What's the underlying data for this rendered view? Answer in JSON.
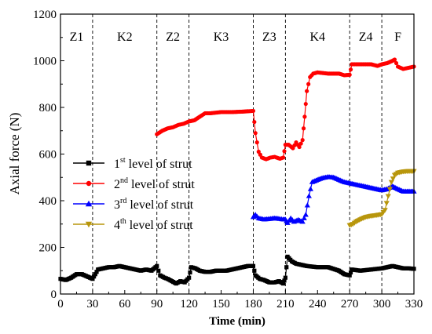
{
  "chart_data": {
    "type": "line",
    "xlabel": "Time (min)",
    "ylabel": "Axial force (N)",
    "xlim": [
      0,
      330
    ],
    "ylim": [
      0,
      1200
    ],
    "xticks": [
      "0",
      "30",
      "60",
      "90",
      "120",
      "150",
      "180",
      "210",
      "240",
      "270",
      "300",
      "330"
    ],
    "yticks": [
      "0",
      "200",
      "400",
      "600",
      "800",
      "1000",
      "1200"
    ],
    "phase_boundaries": [
      30,
      90,
      120,
      180,
      210,
      270,
      300
    ],
    "phases": [
      {
        "label": "Z1",
        "x": 15
      },
      {
        "label": "K2",
        "x": 60
      },
      {
        "label": "Z2",
        "x": 105
      },
      {
        "label": "K3",
        "x": 150
      },
      {
        "label": "Z3",
        "x": 195
      },
      {
        "label": "K4",
        "x": 240
      },
      {
        "label": "Z4",
        "x": 285
      },
      {
        "label": "F",
        "x": 315
      }
    ],
    "series": [
      {
        "name_num": "1",
        "name_sup": "st",
        "name_rest": " level of strut",
        "color": "#000000",
        "marker": "square",
        "points": [
          [
            0,
            65
          ],
          [
            5,
            60
          ],
          [
            10,
            70
          ],
          [
            15,
            85
          ],
          [
            20,
            85
          ],
          [
            25,
            75
          ],
          [
            30,
            65
          ],
          [
            35,
            105
          ],
          [
            40,
            110
          ],
          [
            45,
            115
          ],
          [
            50,
            115
          ],
          [
            55,
            120
          ],
          [
            60,
            115
          ],
          [
            65,
            110
          ],
          [
            70,
            105
          ],
          [
            75,
            100
          ],
          [
            80,
            105
          ],
          [
            85,
            100
          ],
          [
            90,
            120
          ],
          [
            93,
            80
          ],
          [
            97,
            70
          ],
          [
            100,
            65
          ],
          [
            104,
            55
          ],
          [
            108,
            45
          ],
          [
            112,
            55
          ],
          [
            116,
            50
          ],
          [
            120,
            70
          ],
          [
            122,
            115
          ],
          [
            126,
            110
          ],
          [
            130,
            100
          ],
          [
            135,
            95
          ],
          [
            140,
            95
          ],
          [
            145,
            100
          ],
          [
            150,
            100
          ],
          [
            155,
            100
          ],
          [
            160,
            105
          ],
          [
            165,
            110
          ],
          [
            170,
            115
          ],
          [
            175,
            120
          ],
          [
            180,
            120
          ],
          [
            182,
            80
          ],
          [
            186,
            65
          ],
          [
            190,
            60
          ],
          [
            195,
            50
          ],
          [
            200,
            50
          ],
          [
            204,
            55
          ],
          [
            208,
            45
          ],
          [
            210,
            70
          ],
          [
            212,
            160
          ],
          [
            216,
            140
          ],
          [
            220,
            130
          ],
          [
            225,
            125
          ],
          [
            230,
            120
          ],
          [
            240,
            115
          ],
          [
            250,
            115
          ],
          [
            260,
            100
          ],
          [
            265,
            85
          ],
          [
            270,
            80
          ],
          [
            272,
            105
          ],
          [
            280,
            100
          ],
          [
            290,
            105
          ],
          [
            300,
            110
          ],
          [
            305,
            115
          ],
          [
            310,
            120
          ],
          [
            315,
            115
          ],
          [
            320,
            110
          ],
          [
            325,
            110
          ],
          [
            330,
            108
          ]
        ]
      },
      {
        "name_num": "2",
        "name_sup": "nd",
        "name_rest": " level of strut",
        "color": "#ff0000",
        "marker": "circle",
        "points": [
          [
            90,
            685
          ],
          [
            95,
            700
          ],
          [
            100,
            710
          ],
          [
            105,
            715
          ],
          [
            110,
            725
          ],
          [
            115,
            730
          ],
          [
            120,
            740
          ],
          [
            125,
            745
          ],
          [
            130,
            760
          ],
          [
            135,
            775
          ],
          [
            140,
            775
          ],
          [
            150,
            780
          ],
          [
            160,
            780
          ],
          [
            170,
            782
          ],
          [
            180,
            785
          ],
          [
            182,
            690
          ],
          [
            185,
            610
          ],
          [
            188,
            585
          ],
          [
            192,
            578
          ],
          [
            196,
            585
          ],
          [
            200,
            588
          ],
          [
            205,
            580
          ],
          [
            208,
            585
          ],
          [
            210,
            640
          ],
          [
            213,
            640
          ],
          [
            217,
            625
          ],
          [
            220,
            650
          ],
          [
            223,
            630
          ],
          [
            226,
            660
          ],
          [
            228,
            760
          ],
          [
            230,
            870
          ],
          [
            233,
            930
          ],
          [
            236,
            945
          ],
          [
            240,
            950
          ],
          [
            250,
            945
          ],
          [
            260,
            945
          ],
          [
            265,
            938
          ],
          [
            270,
            940
          ],
          [
            272,
            985
          ],
          [
            280,
            985
          ],
          [
            290,
            985
          ],
          [
            296,
            978
          ],
          [
            300,
            985
          ],
          [
            305,
            990
          ],
          [
            310,
            1000
          ],
          [
            312,
            1005
          ],
          [
            315,
            975
          ],
          [
            320,
            965
          ],
          [
            325,
            970
          ],
          [
            330,
            975
          ]
        ]
      },
      {
        "name_num": "3",
        "name_sup": "rd",
        "name_rest": " level of strut",
        "color": "#0000ff",
        "marker": "triangle-up",
        "points": [
          [
            180,
            330
          ],
          [
            182,
            340
          ],
          [
            185,
            325
          ],
          [
            190,
            320
          ],
          [
            195,
            322
          ],
          [
            200,
            325
          ],
          [
            205,
            322
          ],
          [
            208,
            320
          ],
          [
            210,
            320
          ],
          [
            212,
            305
          ],
          [
            215,
            325
          ],
          [
            218,
            310
          ],
          [
            222,
            318
          ],
          [
            226,
            310
          ],
          [
            229,
            340
          ],
          [
            232,
            420
          ],
          [
            235,
            480
          ],
          [
            240,
            490
          ],
          [
            245,
            498
          ],
          [
            250,
            502
          ],
          [
            255,
            500
          ],
          [
            260,
            490
          ],
          [
            265,
            480
          ],
          [
            270,
            475
          ],
          [
            275,
            470
          ],
          [
            280,
            465
          ],
          [
            285,
            460
          ],
          [
            290,
            455
          ],
          [
            295,
            450
          ],
          [
            300,
            445
          ],
          [
            305,
            450
          ],
          [
            310,
            462
          ],
          [
            315,
            450
          ],
          [
            320,
            440
          ],
          [
            325,
            440
          ],
          [
            330,
            440
          ]
        ]
      },
      {
        "name_num": "4",
        "name_sup": "th",
        "name_rest": " level of strut",
        "color": "#b8960c",
        "marker": "triangle-down",
        "points": [
          [
            270,
            295
          ],
          [
            273,
            300
          ],
          [
            276,
            310
          ],
          [
            280,
            320
          ],
          [
            285,
            330
          ],
          [
            290,
            335
          ],
          [
            295,
            338
          ],
          [
            300,
            342
          ],
          [
            303,
            360
          ],
          [
            306,
            420
          ],
          [
            309,
            480
          ],
          [
            312,
            510
          ],
          [
            315,
            520
          ],
          [
            320,
            525
          ],
          [
            325,
            527
          ],
          [
            330,
            527
          ]
        ]
      }
    ],
    "legend_position": "center-left"
  }
}
